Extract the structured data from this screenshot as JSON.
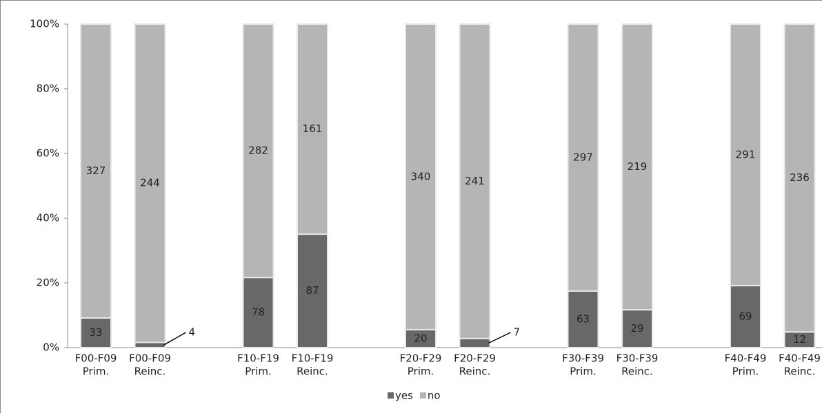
{
  "chart_data": {
    "type": "stacked_bar",
    "normalize": true,
    "categories": [
      [
        "F00-F09",
        "Prim."
      ],
      [
        "F00-F09",
        "Reinc."
      ],
      null,
      [
        "F10-F19",
        "Prim."
      ],
      [
        "F10-F19",
        "Reinc."
      ],
      null,
      [
        "F20-F29",
        "Prim."
      ],
      [
        "F20-F29",
        "Reinc."
      ],
      null,
      [
        "F30-F39",
        "Prim."
      ],
      [
        "F30-F39",
        "Reinc."
      ],
      null,
      [
        "F40-F49",
        "Prim."
      ],
      [
        "F40-F49",
        "Reinc."
      ]
    ],
    "series": [
      {
        "name": "yes",
        "color": "#686868",
        "values": [
          33,
          4,
          null,
          78,
          87,
          null,
          20,
          7,
          null,
          63,
          29,
          null,
          69,
          12
        ]
      },
      {
        "name": "no",
        "color": "#b5b5b5",
        "values": [
          327,
          244,
          null,
          282,
          161,
          null,
          340,
          241,
          null,
          297,
          219,
          null,
          291,
          236
        ]
      }
    ],
    "ylim": [
      0,
      100
    ],
    "yticks": [
      {
        "value": 0,
        "label": "0%"
      },
      {
        "value": 20,
        "label": "20%"
      },
      {
        "value": 40,
        "label": "40%"
      },
      {
        "value": 60,
        "label": "60%"
      },
      {
        "value": 80,
        "label": "80%"
      },
      {
        "value": 100,
        "label": "100%"
      }
    ],
    "legend": "bottom"
  }
}
